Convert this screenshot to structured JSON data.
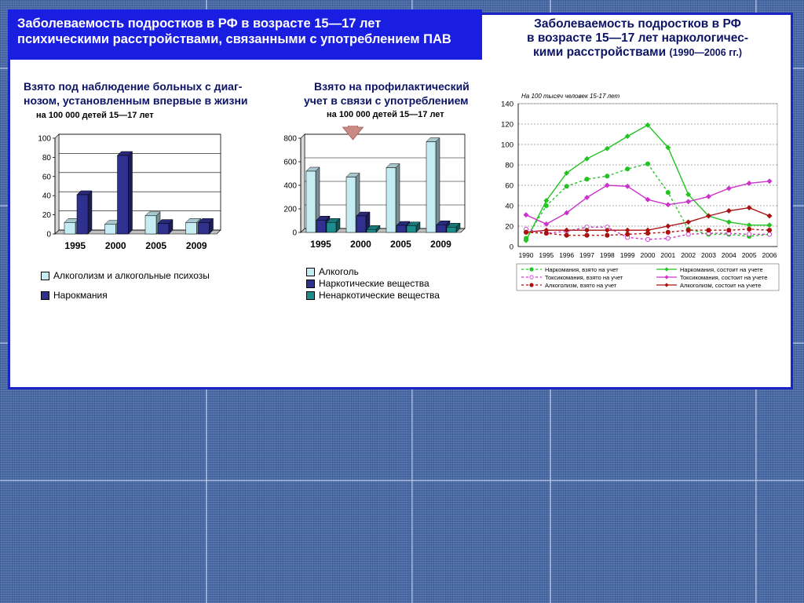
{
  "banner": {
    "line1": "Заболеваемость подростков в РФ в возрасте 15—17 лет",
    "line2": "психическими расстройствами, связанными с употреблением ПАВ"
  },
  "right_title": {
    "line1": "Заболеваемость подростков в РФ",
    "line2": "в возрасте 15—17 лет  наркологичес-",
    "line3a": "кими расстройствами ",
    "line3b": "(1990—2006 гг.)"
  },
  "chart1_caption": {
    "line1": "Взято  под  наблюдение  больных с диаг-",
    "line2": "нозом, установленным впервые в жизни",
    "unit": "на 100 000 детей 15—17 лет"
  },
  "chart2_caption": {
    "line1": "Взято на профилактический",
    "line2": "учет в связи с употреблением",
    "unit": "на 100 000 детей 15—17 лет"
  },
  "colors": {
    "light_bar": "#c4ecf2",
    "dark_bar": "#30308e",
    "teal_bar": "#1c8c8c",
    "arrow": "#c98a84",
    "narco": "#22c322",
    "toxic": "#cc33cc",
    "alco": "#aa1111"
  },
  "chart_data": [
    {
      "type": "bar",
      "categories": [
        "1995",
        "2000",
        "2005",
        "2009"
      ],
      "ylim": [
        0,
        100
      ],
      "yticks": [
        "0",
        "20",
        "40",
        "60",
        "80",
        "100"
      ],
      "series": [
        {
          "name": "Алкоголизм и алкогольные психозы",
          "values": [
            12,
            10,
            19,
            12
          ]
        },
        {
          "name": "Нарокмания",
          "values": [
            41,
            82,
            11,
            12
          ]
        }
      ],
      "legend": "bottom"
    },
    {
      "type": "bar",
      "categories": [
        "1995",
        "2000",
        "2005",
        "2009"
      ],
      "ylim": [
        0,
        800
      ],
      "yticks": [
        "0",
        "200",
        "400",
        "600",
        "800"
      ],
      "series": [
        {
          "name": "Алкоголь",
          "values": [
            520,
            470,
            550,
            770
          ]
        },
        {
          "name": "Наркотические вещества",
          "values": [
            105,
            140,
            60,
            65
          ]
        },
        {
          "name": "Ненаркотические вещества",
          "values": [
            85,
            25,
            55,
            45
          ]
        }
      ],
      "highlight_category": "2000",
      "legend": "bottom"
    },
    {
      "type": "line",
      "subtitle": "На 100 тысяч человек 15-17 лет",
      "x": [
        "1990",
        "1995",
        "1996",
        "1997",
        "1998",
        "1999",
        "2000",
        "2001",
        "2002",
        "2003",
        "2004",
        "2005",
        "2006"
      ],
      "ylim": [
        0,
        140
      ],
      "yticks": [
        "0",
        "20",
        "40",
        "60",
        "80",
        "100",
        "120",
        "140"
      ],
      "grid": true,
      "series": [
        {
          "name": "Наркомания, взято на учет",
          "style": "dashed",
          "color": "narco",
          "values": [
            8,
            40,
            59,
            66,
            69,
            76,
            81,
            53,
            17,
            12,
            12,
            10,
            12
          ]
        },
        {
          "name": "Наркомания, состоит на учете",
          "style": "solid",
          "color": "narco",
          "values": [
            6,
            45,
            72,
            86,
            96,
            108,
            119,
            97,
            51,
            30,
            24,
            21,
            21
          ]
        },
        {
          "name": "Токсикомания, взято на учет",
          "style": "dashed",
          "color": "toxic",
          "values": [
            17,
            13,
            15,
            19,
            19,
            9,
            7,
            8,
            12,
            13,
            13,
            12,
            12
          ]
        },
        {
          "name": "Токсикомания, состоит на учете",
          "style": "solid",
          "color": "toxic",
          "values": [
            31,
            22,
            33,
            48,
            60,
            59,
            46,
            41,
            44,
            49,
            57,
            62,
            64
          ]
        },
        {
          "name": "Алкоголизм, взято на учет",
          "style": "dashed",
          "color": "alco",
          "values": [
            14,
            13,
            11,
            11,
            11,
            12,
            13,
            14,
            16,
            16,
            16,
            17,
            16
          ]
        },
        {
          "name": "Алкоголизм, состоит на учете",
          "style": "solid",
          "color": "alco",
          "values": [
            14,
            16,
            16,
            16,
            16,
            16,
            16,
            20,
            24,
            30,
            35,
            38,
            30
          ]
        }
      ],
      "legend": "bottom"
    }
  ]
}
